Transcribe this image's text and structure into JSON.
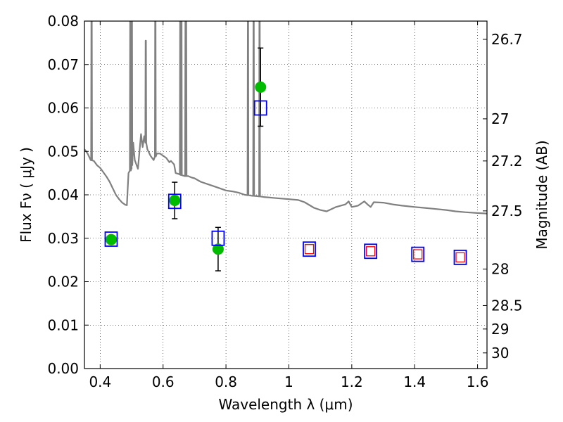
{
  "chart_data": {
    "type": "scatter",
    "xlabel": "Wavelength  λ (μm)",
    "ylabel": "Flux  Fν  ( μJy )",
    "y2label": "Magnitude (AB)",
    "xlim": [
      0.35,
      1.63
    ],
    "ylim": [
      0.0,
      0.08
    ],
    "grid": true,
    "x_ticks": [
      0.4,
      0.6,
      0.8,
      1.0,
      1.2,
      1.4,
      1.6
    ],
    "x_tick_labels": [
      "0.4",
      "0.6",
      "0.8",
      "1",
      "1.2",
      "1.4",
      "1.6"
    ],
    "y_ticks": [
      0.0,
      0.01,
      0.02,
      0.03,
      0.04,
      0.05,
      0.06,
      0.07,
      0.08
    ],
    "y_tick_labels": [
      "0.00",
      "0.01",
      "0.02",
      "0.03",
      "0.04",
      "0.05",
      "0.06",
      "0.07",
      "0.08"
    ],
    "magnitude_ticks": [
      {
        "label": "26.7",
        "flux": 0.0758
      },
      {
        "label": "27",
        "flux": 0.0575
      },
      {
        "label": "27.2",
        "flux": 0.0478
      },
      {
        "label": "27.5",
        "flux": 0.0363
      },
      {
        "label": "28",
        "flux": 0.0229
      },
      {
        "label": "28.5",
        "flux": 0.0145
      },
      {
        "label": "29",
        "flux": 0.0091
      },
      {
        "label": "30",
        "flux": 0.0036
      }
    ],
    "series": [
      {
        "kind": "model_sed",
        "color": "#808080",
        "points": [
          [
            0.35,
            0.0505
          ],
          [
            0.36,
            0.0495
          ],
          [
            0.37,
            0.048
          ],
          [
            0.38,
            0.0478
          ],
          [
            0.39,
            0.0468
          ],
          [
            0.4,
            0.0462
          ],
          [
            0.41,
            0.0452
          ],
          [
            0.42,
            0.0442
          ],
          [
            0.43,
            0.043
          ],
          [
            0.44,
            0.0415
          ],
          [
            0.45,
            0.04
          ],
          [
            0.46,
            0.039
          ],
          [
            0.47,
            0.0382
          ],
          [
            0.48,
            0.0377
          ],
          [
            0.485,
            0.0376
          ],
          [
            0.49,
            0.045
          ],
          [
            0.5,
            0.046
          ],
          [
            0.505,
            0.052
          ],
          [
            0.51,
            0.048
          ],
          [
            0.52,
            0.046
          ],
          [
            0.53,
            0.054
          ],
          [
            0.535,
            0.051
          ],
          [
            0.54,
            0.0535
          ],
          [
            0.545,
            0.052
          ],
          [
            0.55,
            0.0505
          ],
          [
            0.56,
            0.049
          ],
          [
            0.57,
            0.048
          ],
          [
            0.58,
            0.0495
          ],
          [
            0.59,
            0.0495
          ],
          [
            0.6,
            0.049
          ],
          [
            0.61,
            0.0485
          ],
          [
            0.62,
            0.0475
          ],
          [
            0.625,
            0.0478
          ],
          [
            0.635,
            0.047
          ],
          [
            0.64,
            0.045
          ],
          [
            0.65,
            0.0448
          ],
          [
            0.66,
            0.0445
          ],
          [
            0.67,
            0.0443
          ],
          [
            0.68,
            0.0443
          ],
          [
            0.69,
            0.044
          ],
          [
            0.7,
            0.0438
          ],
          [
            0.72,
            0.043
          ],
          [
            0.74,
            0.0425
          ],
          [
            0.76,
            0.042
          ],
          [
            0.78,
            0.0415
          ],
          [
            0.8,
            0.041
          ],
          [
            0.82,
            0.0408
          ],
          [
            0.84,
            0.0405
          ],
          [
            0.86,
            0.04
          ],
          [
            0.88,
            0.0398
          ],
          [
            0.9,
            0.0397
          ],
          [
            0.92,
            0.0395
          ],
          [
            0.95,
            0.0393
          ],
          [
            1.0,
            0.039
          ],
          [
            1.03,
            0.0388
          ],
          [
            1.05,
            0.0383
          ],
          [
            1.08,
            0.037
          ],
          [
            1.1,
            0.0365
          ],
          [
            1.12,
            0.0362
          ],
          [
            1.15,
            0.0372
          ],
          [
            1.18,
            0.0378
          ],
          [
            1.19,
            0.0385
          ],
          [
            1.2,
            0.0372
          ],
          [
            1.22,
            0.0375
          ],
          [
            1.24,
            0.0385
          ],
          [
            1.25,
            0.0378
          ],
          [
            1.26,
            0.0372
          ],
          [
            1.27,
            0.0383
          ],
          [
            1.3,
            0.0382
          ],
          [
            1.33,
            0.0378
          ],
          [
            1.36,
            0.0375
          ],
          [
            1.4,
            0.0372
          ],
          [
            1.43,
            0.037
          ],
          [
            1.46,
            0.0368
          ],
          [
            1.5,
            0.0365
          ],
          [
            1.53,
            0.0362
          ],
          [
            1.56,
            0.036
          ],
          [
            1.6,
            0.0358
          ],
          [
            1.63,
            0.0357
          ]
        ],
        "emission_lines": [
          {
            "x": 0.3727,
            "peak": 0.085
          },
          {
            "x": 0.4959,
            "peak": 0.085
          },
          {
            "x": 0.5007,
            "peak": 0.085
          },
          {
            "x": 0.545,
            "peak": 0.0755
          },
          {
            "x": 0.5755,
            "peak": 0.085
          },
          {
            "x": 0.6548,
            "peak": 0.085
          },
          {
            "x": 0.6563,
            "peak": 0.085
          },
          {
            "x": 0.6583,
            "peak": 0.085
          },
          {
            "x": 0.6716,
            "peak": 0.085
          },
          {
            "x": 0.6731,
            "peak": 0.085
          },
          {
            "x": 0.87,
            "peak": 0.085
          },
          {
            "x": 0.888,
            "peak": 0.085
          },
          {
            "x": 0.9069,
            "peak": 0.085
          }
        ]
      },
      {
        "kind": "observed",
        "color": "#00bb00",
        "points": [
          {
            "x": 0.435,
            "y": 0.0297,
            "err": null
          },
          {
            "x": 0.637,
            "y": 0.0387,
            "err": 0.0042
          },
          {
            "x": 0.775,
            "y": 0.0275,
            "err": 0.005
          },
          {
            "x": 0.91,
            "y": 0.0648,
            "err": 0.009
          }
        ]
      },
      {
        "kind": "model_band",
        "color": "#0000ff",
        "points": [
          {
            "x": 0.435,
            "y": 0.0298
          },
          {
            "x": 0.637,
            "y": 0.0385
          },
          {
            "x": 0.775,
            "y": 0.03
          },
          {
            "x": 0.91,
            "y": 0.06
          },
          {
            "x": 1.065,
            "y": 0.0275
          },
          {
            "x": 1.26,
            "y": 0.027
          },
          {
            "x": 1.41,
            "y": 0.0263
          },
          {
            "x": 1.545,
            "y": 0.0256
          }
        ]
      },
      {
        "kind": "predicted",
        "color": "#ff0000",
        "points": [
          {
            "x": 1.065,
            "y": 0.0275
          },
          {
            "x": 1.26,
            "y": 0.027
          },
          {
            "x": 1.41,
            "y": 0.0263
          },
          {
            "x": 1.545,
            "y": 0.0256
          }
        ]
      }
    ]
  }
}
